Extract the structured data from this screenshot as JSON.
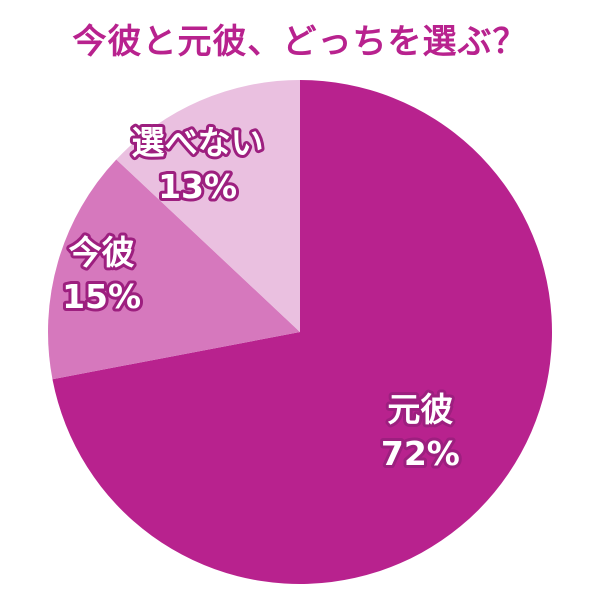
{
  "title": "今彼と元彼、どっちを選ぶ？",
  "colors": {
    "title": "#b8228e",
    "label_outline": "#9d1f7f",
    "background": "#ffffff"
  },
  "chart_data": {
    "type": "pie",
    "title": "今彼と元彼、どっちを選ぶ？",
    "start": "12 o'clock",
    "direction": "clockwise",
    "slices": [
      {
        "label": "元彼",
        "value": 72,
        "value_label": "72%",
        "color": "#b8228e"
      },
      {
        "label": "今彼",
        "value": 15,
        "value_label": "15%",
        "color": "#d678bd"
      },
      {
        "label": "選べない",
        "value": 13,
        "value_label": "13%",
        "color": "#eac0e0"
      }
    ]
  }
}
